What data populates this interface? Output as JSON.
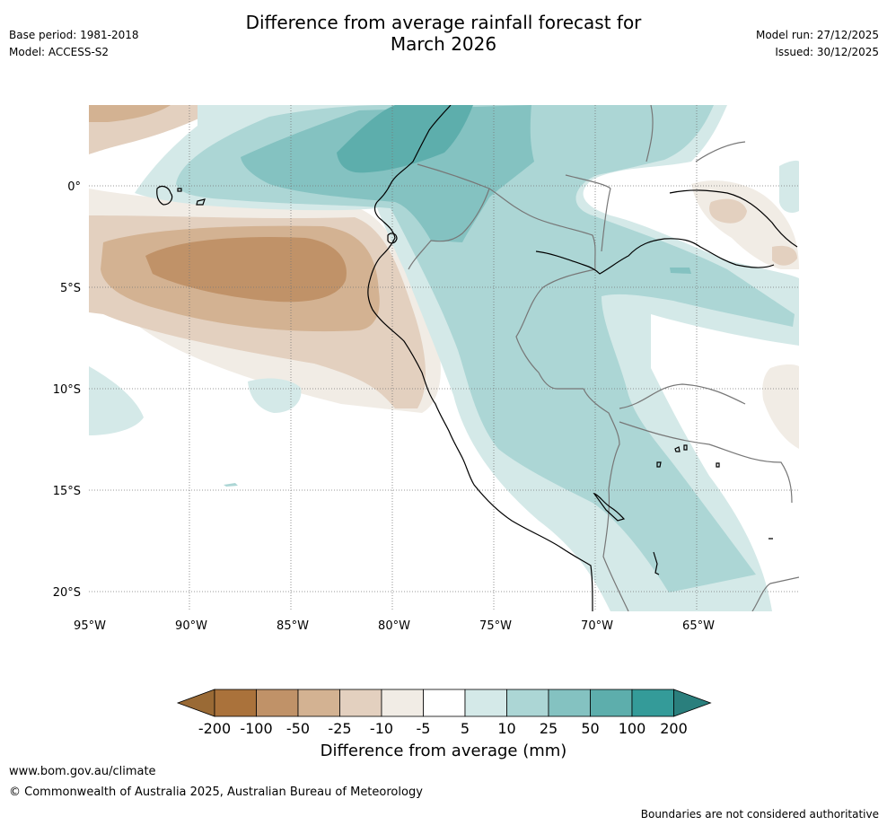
{
  "header": {
    "title_line1": "Difference from average rainfall forecast for",
    "title_line2": "March 2026",
    "base_period": "Base period: 1981-2018",
    "model": "Model: ACCESS-S2",
    "model_run": "Model run: 27/12/2025",
    "issued": "Issued: 30/12/2025"
  },
  "map": {
    "lat_labels": [
      "0°",
      "5°S",
      "10°S",
      "15°S",
      "20°S"
    ],
    "lon_labels": [
      "95°W",
      "90°W",
      "85°W",
      "80°W",
      "75°W",
      "70°W",
      "65°W"
    ]
  },
  "legend": {
    "tick_labels": [
      "-200",
      "-100",
      "-50",
      "-25",
      "-10",
      "-5",
      "5",
      "10",
      "25",
      "50",
      "100",
      "200"
    ],
    "colors": [
      "#9a6a35",
      "#aa723b",
      "#c09268",
      "#d3b292",
      "#e3d0bf",
      "#f1ece5",
      "#ffffff",
      "#d4e9e8",
      "#acd6d5",
      "#84c2c1",
      "#5daeac",
      "#349b99",
      "#2a7f7d"
    ],
    "unit_label": "Difference from average (mm)"
  },
  "footer": {
    "url": "www.bom.gov.au/climate",
    "copyright": "© Commonwealth of Australia 2025, Australian Bureau of Meteorology",
    "disclaimer": "Boundaries are not considered authoritative"
  }
}
